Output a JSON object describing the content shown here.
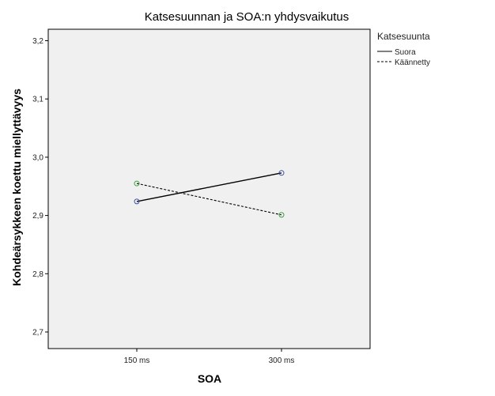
{
  "chart_data": {
    "type": "line",
    "title": "Katsesuunnan ja SOA:n yhdysvaikutus",
    "xlabel": "SOA",
    "ylabel": "Kohdeärsykkeen koettu miellyttävyys",
    "categories": [
      "150 ms",
      "300 ms"
    ],
    "ylim": [
      2.65,
      3.25
    ],
    "yticks": [
      2.7,
      2.8,
      2.9,
      3.0,
      3.1,
      3.2
    ],
    "ytick_labels": [
      "2,7",
      "2,8",
      "2,9",
      "3,0",
      "3,1",
      "3,2"
    ],
    "grid": false,
    "legend": {
      "title": "Katsesuunta",
      "placement": "right"
    },
    "series": [
      {
        "name": "Suora",
        "values": [
          2.924,
          2.973
        ],
        "line_style": "solid",
        "line_color": "#000000",
        "marker_color": "#3b4fa0"
      },
      {
        "name": "Käännetty",
        "values": [
          2.955,
          2.901
        ],
        "line_style": "dashed",
        "line_color": "#000000",
        "marker_color": "#3aa03a"
      }
    ],
    "colors": {
      "plot_background": "#f0f0f0",
      "frame": "#000000"
    }
  }
}
